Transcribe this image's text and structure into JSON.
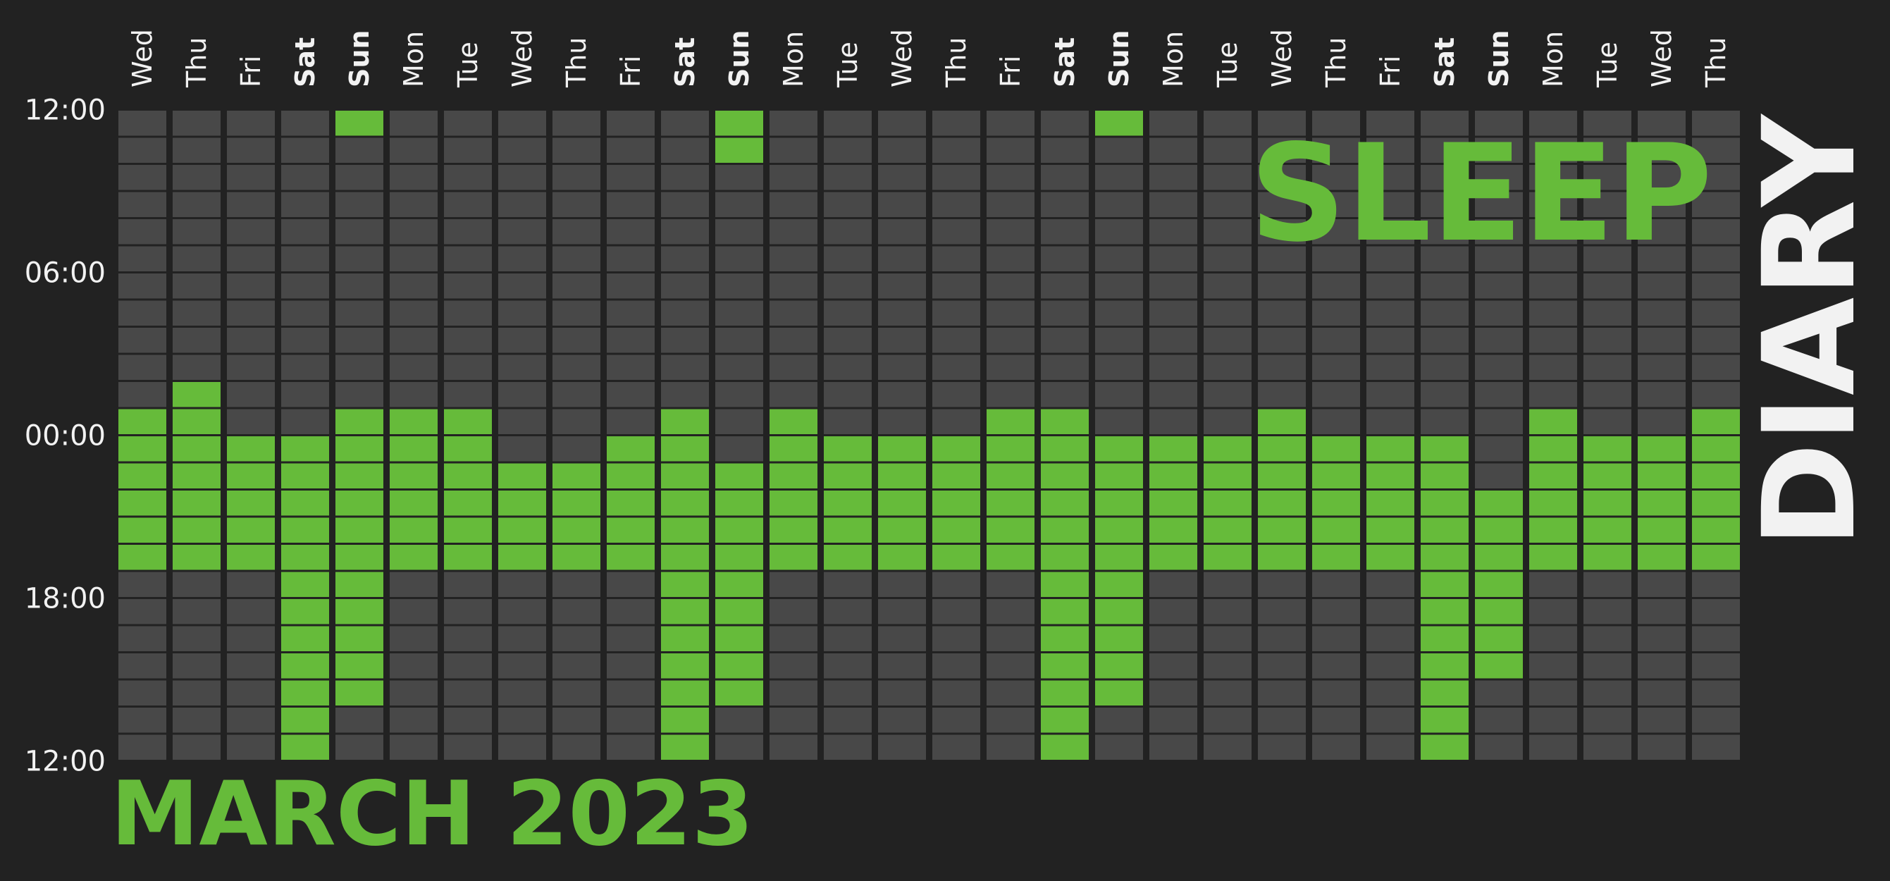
{
  "colors": {
    "background": "#222222",
    "cell_empty": "#484848",
    "cell_sleep": "#66bb3a",
    "text": "#f2f2f2",
    "accent": "#66bb3a",
    "diary": "#f2f2f2"
  },
  "titles": {
    "sleep": "SLEEP",
    "diary": "DIARY",
    "month": "MARCH 2023"
  },
  "chart_data": {
    "type": "heatmap",
    "title": "SLEEP DIARY",
    "subtitle": "MARCH 2023",
    "x_labels": [
      "Wed",
      "Thu",
      "Fri",
      "Sat",
      "Sun",
      "Mon",
      "Tue",
      "Wed",
      "Thu",
      "Fri",
      "Sat",
      "Sun",
      "Mon",
      "Tue",
      "Wed",
      "Thu",
      "Fri",
      "Sat",
      "Sun",
      "Mon",
      "Tue",
      "Wed",
      "Thu",
      "Fri",
      "Sat",
      "Sun",
      "Mon",
      "Tue",
      "Wed",
      "Thu"
    ],
    "weekend_days": [
      "Sat",
      "Sun"
    ],
    "y_tick_labels": [
      "12:00",
      "06:00",
      "00:00",
      "18:00",
      "12:00"
    ],
    "y_axis": "time of day, top 12:00 (noon) down through 00:00 to 12:00 (noon of previous day)",
    "slot_minutes": 60,
    "slots_per_column": 24,
    "legend": "none",
    "grid": true,
    "sleep_slots": [
      [
        11,
        12,
        13,
        14,
        15,
        16
      ],
      [
        10,
        11,
        12,
        13,
        14,
        15,
        16
      ],
      [
        12,
        13,
        14,
        15,
        16
      ],
      [
        12,
        13,
        14,
        15,
        16,
        17,
        18,
        19,
        20,
        21,
        22,
        23
      ],
      [
        0,
        11,
        12,
        13,
        14,
        15,
        16,
        17,
        18,
        19,
        20,
        21
      ],
      [
        11,
        12,
        13,
        14,
        15,
        16
      ],
      [
        11,
        12,
        13,
        14,
        15,
        16
      ],
      [
        13,
        14,
        15,
        16
      ],
      [
        13,
        14,
        15,
        16
      ],
      [
        12,
        13,
        14,
        15,
        16
      ],
      [
        11,
        12,
        13,
        14,
        15,
        16,
        17,
        18,
        19,
        20,
        21,
        22,
        23
      ],
      [
        0,
        1,
        13,
        14,
        15,
        16,
        17,
        18,
        19,
        20,
        21
      ],
      [
        11,
        12,
        13,
        14,
        15,
        16
      ],
      [
        12,
        13,
        14,
        15,
        16
      ],
      [
        12,
        13,
        14,
        15,
        16
      ],
      [
        12,
        13,
        14,
        15,
        16
      ],
      [
        11,
        12,
        13,
        14,
        15,
        16
      ],
      [
        11,
        12,
        13,
        14,
        15,
        16,
        17,
        18,
        19,
        20,
        21,
        22,
        23
      ],
      [
        0,
        12,
        13,
        14,
        15,
        16,
        17,
        18,
        19,
        20,
        21
      ],
      [
        12,
        13,
        14,
        15,
        16
      ],
      [
        12,
        13,
        14,
        15,
        16
      ],
      [
        11,
        12,
        13,
        14,
        15,
        16
      ],
      [
        12,
        13,
        14,
        15,
        16
      ],
      [
        12,
        13,
        14,
        15,
        16
      ],
      [
        12,
        13,
        14,
        15,
        16,
        17,
        18,
        19,
        20,
        21,
        22,
        23
      ],
      [
        14,
        15,
        16,
        17,
        18,
        19,
        20
      ],
      [
        11,
        12,
        13,
        14,
        15,
        16
      ],
      [
        12,
        13,
        14,
        15,
        16
      ],
      [
        12,
        13,
        14,
        15,
        16
      ],
      [
        11,
        12,
        13,
        14,
        15,
        16
      ]
    ]
  }
}
